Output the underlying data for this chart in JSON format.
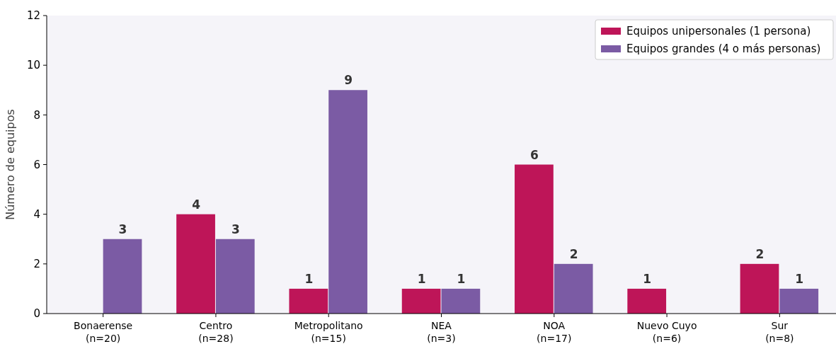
{
  "chart_data": {
    "type": "bar",
    "ylabel": "Número de equipos",
    "categories": [
      "Bonaerense\n(n=20)",
      "Centro\n(n=28)",
      "Metropolitano\n(n=15)",
      "NEA\n(n=3)",
      "NOA\n(n=17)",
      "Nuevo Cuyo\n(n=6)",
      "Sur\n(n=8)"
    ],
    "series": [
      {
        "name": "Equipos unipersonales (1 persona)",
        "color": "#be1558",
        "values": [
          0,
          4,
          1,
          1,
          6,
          1,
          2
        ],
        "value_labels": [
          null,
          "4",
          "1",
          "1",
          "6",
          "1",
          "2"
        ]
      },
      {
        "name": "Equipos grandes (4 o más personas)",
        "color": "#7b5ba4",
        "values": [
          3,
          3,
          9,
          1,
          2,
          0,
          1
        ],
        "value_labels": [
          "3",
          "3",
          "9",
          "1",
          "2",
          null,
          "1"
        ]
      }
    ],
    "ylim": [
      0,
      12
    ],
    "yticks": [
      0,
      2,
      4,
      6,
      8,
      10,
      12
    ],
    "legend": "top right",
    "grid": false
  }
}
